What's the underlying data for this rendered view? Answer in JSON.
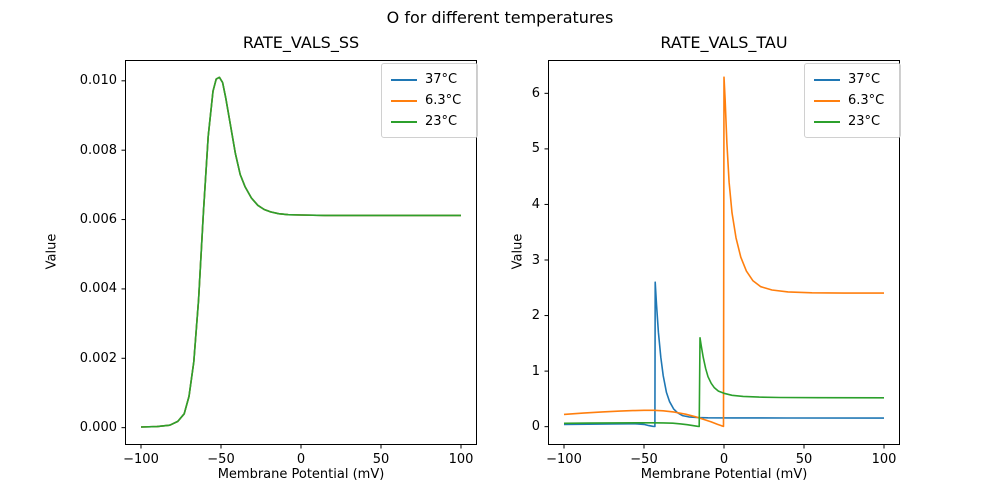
{
  "figure": {
    "suptitle": "O for different temperatures",
    "background_color": "#ffffff",
    "text_color": "#000000",
    "spine_color": "#000000"
  },
  "legend": {
    "position": "upper right",
    "entries": [
      {
        "label": "37°C",
        "color": "#1f77b4"
      },
      {
        "label": "6.3°C",
        "color": "#ff7f0e"
      },
      {
        "label": "23°C",
        "color": "#2ca02c"
      }
    ]
  },
  "chart_data": [
    {
      "type": "line",
      "title": "RATE_VALS_SS",
      "xlabel": "Membrane Potential (mV)",
      "ylabel": "Value",
      "xlim": [
        -110,
        110
      ],
      "ylim": [
        -0.0005,
        0.0106
      ],
      "xticks": [
        -100,
        -50,
        0,
        50,
        100
      ],
      "xtick_labels": [
        "−100",
        "−50",
        "0",
        "50",
        "100"
      ],
      "yticks": [
        0.0,
        0.002,
        0.004,
        0.006,
        0.008,
        0.01
      ],
      "ytick_labels": [
        "0.000",
        "0.002",
        "0.004",
        "0.006",
        "0.008",
        "0.010"
      ],
      "grid": false,
      "legend_position": "upper right",
      "series": [
        {
          "name": "37°C",
          "color": "#1f77b4",
          "points": [
            [
              -100,
              2e-05
            ],
            [
              -90,
              3e-05
            ],
            [
              -82,
              7e-05
            ],
            [
              -77,
              0.00018
            ],
            [
              -73,
              0.0004
            ],
            [
              -70,
              0.0009
            ],
            [
              -67,
              0.0019
            ],
            [
              -64,
              0.0037
            ],
            [
              -61,
              0.0062
            ],
            [
              -58,
              0.0084
            ],
            [
              -55,
              0.0097
            ],
            [
              -53,
              0.01005
            ],
            [
              -51,
              0.0101
            ],
            [
              -49,
              0.00995
            ],
            [
              -47,
              0.0095
            ],
            [
              -44,
              0.0087
            ],
            [
              -41,
              0.0079
            ],
            [
              -38,
              0.0073
            ],
            [
              -35,
              0.00695
            ],
            [
              -31,
              0.00662
            ],
            [
              -27,
              0.00641
            ],
            [
              -23,
              0.00629
            ],
            [
              -19,
              0.00622
            ],
            [
              -14,
              0.00617
            ],
            [
              -8,
              0.00614
            ],
            [
              0,
              0.00613
            ],
            [
              15,
              0.00612
            ],
            [
              40,
              0.00612
            ],
            [
              70,
              0.00612
            ],
            [
              100,
              0.00612
            ]
          ]
        },
        {
          "name": "6.3°C",
          "color": "#ff7f0e",
          "points": [
            [
              -100,
              2e-05
            ],
            [
              -90,
              3e-05
            ],
            [
              -82,
              7e-05
            ],
            [
              -77,
              0.00018
            ],
            [
              -73,
              0.0004
            ],
            [
              -70,
              0.0009
            ],
            [
              -67,
              0.0019
            ],
            [
              -64,
              0.0037
            ],
            [
              -61,
              0.0062
            ],
            [
              -58,
              0.0084
            ],
            [
              -55,
              0.0097
            ],
            [
              -53,
              0.01005
            ],
            [
              -51,
              0.0101
            ],
            [
              -49,
              0.00995
            ],
            [
              -47,
              0.0095
            ],
            [
              -44,
              0.0087
            ],
            [
              -41,
              0.0079
            ],
            [
              -38,
              0.0073
            ],
            [
              -35,
              0.00695
            ],
            [
              -31,
              0.00662
            ],
            [
              -27,
              0.00641
            ],
            [
              -23,
              0.00629
            ],
            [
              -19,
              0.00622
            ],
            [
              -14,
              0.00617
            ],
            [
              -8,
              0.00614
            ],
            [
              0,
              0.00613
            ],
            [
              15,
              0.00612
            ],
            [
              40,
              0.00612
            ],
            [
              70,
              0.00612
            ],
            [
              100,
              0.00612
            ]
          ]
        },
        {
          "name": "23°C",
          "color": "#2ca02c",
          "points": [
            [
              -100,
              2e-05
            ],
            [
              -90,
              3e-05
            ],
            [
              -82,
              7e-05
            ],
            [
              -77,
              0.00018
            ],
            [
              -73,
              0.0004
            ],
            [
              -70,
              0.0009
            ],
            [
              -67,
              0.0019
            ],
            [
              -64,
              0.0037
            ],
            [
              -61,
              0.0062
            ],
            [
              -58,
              0.0084
            ],
            [
              -55,
              0.0097
            ],
            [
              -53,
              0.01005
            ],
            [
              -51,
              0.0101
            ],
            [
              -49,
              0.00995
            ],
            [
              -47,
              0.0095
            ],
            [
              -44,
              0.0087
            ],
            [
              -41,
              0.0079
            ],
            [
              -38,
              0.0073
            ],
            [
              -35,
              0.00695
            ],
            [
              -31,
              0.00662
            ],
            [
              -27,
              0.00641
            ],
            [
              -23,
              0.00629
            ],
            [
              -19,
              0.00622
            ],
            [
              -14,
              0.00617
            ],
            [
              -8,
              0.00614
            ],
            [
              0,
              0.00613
            ],
            [
              15,
              0.00612
            ],
            [
              40,
              0.00612
            ],
            [
              70,
              0.00612
            ],
            [
              100,
              0.00612
            ]
          ]
        }
      ]
    },
    {
      "type": "line",
      "title": "RATE_VALS_TAU",
      "xlabel": "Membrane Potential (mV)",
      "ylabel": "Value",
      "xlim": [
        -110,
        110
      ],
      "ylim": [
        -0.33,
        6.6
      ],
      "xticks": [
        -100,
        -50,
        0,
        50,
        100
      ],
      "xtick_labels": [
        "−100",
        "−50",
        "0",
        "50",
        "100"
      ],
      "yticks": [
        0,
        1,
        2,
        3,
        4,
        5,
        6
      ],
      "ytick_labels": [
        "0",
        "1",
        "2",
        "3",
        "4",
        "5",
        "6"
      ],
      "grid": false,
      "legend_position": "upper right",
      "series": [
        {
          "name": "37°C",
          "color": "#1f77b4",
          "points": [
            [
              -100,
              0.04
            ],
            [
              -85,
              0.045
            ],
            [
              -70,
              0.05
            ],
            [
              -60,
              0.052
            ],
            [
              -54,
              0.05
            ],
            [
              -50,
              0.04
            ],
            [
              -47,
              0.02
            ],
            [
              -44.5,
              0.007
            ],
            [
              -43.2,
              0.004
            ],
            [
              -43,
              2.6
            ],
            [
              -42.2,
              2.2
            ],
            [
              -41,
              1.7
            ],
            [
              -39.5,
              1.25
            ],
            [
              -38,
              0.92
            ],
            [
              -36,
              0.62
            ],
            [
              -34,
              0.45
            ],
            [
              -31.5,
              0.32
            ],
            [
              -29,
              0.25
            ],
            [
              -26,
              0.2
            ],
            [
              -22,
              0.175
            ],
            [
              -17,
              0.165
            ],
            [
              -10,
              0.16
            ],
            [
              5,
              0.158
            ],
            [
              40,
              0.156
            ],
            [
              100,
              0.155
            ]
          ]
        },
        {
          "name": "6.3°C",
          "color": "#ff7f0e",
          "points": [
            [
              -100,
              0.22
            ],
            [
              -88,
              0.245
            ],
            [
              -76,
              0.265
            ],
            [
              -65,
              0.28
            ],
            [
              -57,
              0.29
            ],
            [
              -50,
              0.295
            ],
            [
              -44,
              0.295
            ],
            [
              -38,
              0.285
            ],
            [
              -31,
              0.262
            ],
            [
              -24,
              0.225
            ],
            [
              -18,
              0.18
            ],
            [
              -13,
              0.135
            ],
            [
              -8,
              0.085
            ],
            [
              -4,
              0.04
            ],
            [
              -1.5,
              0.015
            ],
            [
              -0.3,
              0.004
            ],
            [
              0,
              6.29
            ],
            [
              0.7,
              5.9
            ],
            [
              1.8,
              5.1
            ],
            [
              3.2,
              4.4
            ],
            [
              5,
              3.85
            ],
            [
              7.5,
              3.4
            ],
            [
              10.5,
              3.05
            ],
            [
              14,
              2.8
            ],
            [
              18,
              2.63
            ],
            [
              23,
              2.52
            ],
            [
              30,
              2.46
            ],
            [
              40,
              2.425
            ],
            [
              55,
              2.41
            ],
            [
              75,
              2.405
            ],
            [
              100,
              2.405
            ]
          ]
        },
        {
          "name": "23°C",
          "color": "#2ca02c",
          "points": [
            [
              -100,
              0.06
            ],
            [
              -85,
              0.065
            ],
            [
              -70,
              0.068
            ],
            [
              -55,
              0.07
            ],
            [
              -45,
              0.07
            ],
            [
              -38,
              0.068
            ],
            [
              -32,
              0.062
            ],
            [
              -27,
              0.05
            ],
            [
              -23,
              0.035
            ],
            [
              -19,
              0.018
            ],
            [
              -16.5,
              0.007
            ],
            [
              -15.5,
              0.003
            ],
            [
              -15,
              1.6
            ],
            [
              -14.2,
              1.45
            ],
            [
              -13,
              1.25
            ],
            [
              -11.5,
              1.05
            ],
            [
              -10,
              0.9
            ],
            [
              -8,
              0.78
            ],
            [
              -6,
              0.7
            ],
            [
              -3.5,
              0.64
            ],
            [
              0,
              0.6
            ],
            [
              5,
              0.565
            ],
            [
              12,
              0.545
            ],
            [
              22,
              0.532
            ],
            [
              35,
              0.525
            ],
            [
              60,
              0.521
            ],
            [
              100,
              0.52
            ]
          ]
        }
      ]
    }
  ]
}
